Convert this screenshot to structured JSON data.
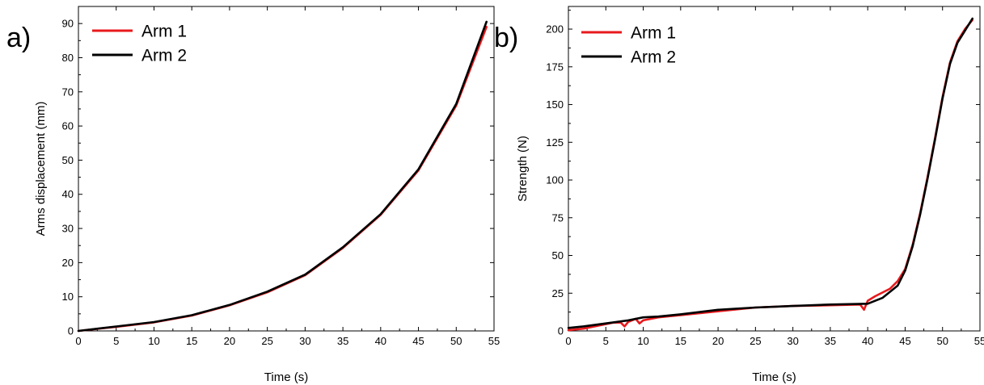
{
  "colors": {
    "arm1": "#e8191c",
    "arm2": "#000000",
    "axis": "#000000"
  },
  "chart_data": [
    {
      "type": "line",
      "panel_label": "a)",
      "xlabel": "Time (s)",
      "ylabel": "Arms displacement (mm)",
      "xlim": [
        0,
        55
      ],
      "ylim": [
        0,
        95
      ],
      "xticks": [
        0,
        5,
        10,
        15,
        20,
        25,
        30,
        35,
        40,
        45,
        50,
        55
      ],
      "yticks": [
        0,
        10,
        20,
        30,
        40,
        50,
        60,
        70,
        80,
        90
      ],
      "grid": false,
      "legend_position": "top-left",
      "series": [
        {
          "name": "Arm 1",
          "color": "#e8191c",
          "x": [
            0,
            5,
            10,
            15,
            20,
            25,
            30,
            35,
            40,
            45,
            50,
            54
          ],
          "y": [
            0,
            1.2,
            2.5,
            4.5,
            7.5,
            11.3,
            16.3,
            24.3,
            34,
            47,
            66,
            89
          ]
        },
        {
          "name": "Arm 2",
          "color": "#000000",
          "x": [
            0,
            5,
            10,
            15,
            20,
            25,
            30,
            35,
            40,
            45,
            50,
            54
          ],
          "y": [
            0,
            1.3,
            2.6,
            4.6,
            7.6,
            11.5,
            16.5,
            24.5,
            34.2,
            47.3,
            66.5,
            90.5
          ]
        }
      ]
    },
    {
      "type": "line",
      "panel_label": "b)",
      "xlabel": "Time (s)",
      "ylabel": "Strength (N)",
      "xlim": [
        0,
        55
      ],
      "ylim": [
        0,
        215
      ],
      "xticks": [
        0,
        5,
        10,
        15,
        20,
        25,
        30,
        35,
        40,
        45,
        50,
        55
      ],
      "yticks": [
        0,
        25,
        50,
        75,
        100,
        125,
        150,
        175,
        200
      ],
      "grid": false,
      "legend_position": "top-left",
      "series": [
        {
          "name": "Arm 1",
          "color": "#e8191c",
          "x": [
            0,
            2,
            4,
            6,
            7,
            7.5,
            8,
            9,
            9.5,
            10,
            12,
            15,
            20,
            25,
            30,
            35,
            39,
            39.5,
            40,
            41,
            43,
            44,
            45,
            46,
            47,
            48,
            49,
            50,
            51,
            52,
            53,
            53.5,
            54
          ],
          "y": [
            0.5,
            1.5,
            3.5,
            5.5,
            5.5,
            3,
            6,
            8,
            5,
            7,
            9,
            10.5,
            13,
            15.5,
            16.5,
            17,
            17.5,
            14,
            20,
            23,
            28,
            33,
            41,
            57,
            78,
            102,
            128,
            155,
            178,
            192,
            200,
            203,
            206
          ]
        },
        {
          "name": "Arm 2",
          "color": "#000000",
          "x": [
            0,
            2,
            5,
            8,
            10,
            12,
            15,
            20,
            25,
            30,
            35,
            40,
            42,
            44,
            45,
            46,
            47,
            48,
            49,
            50,
            51,
            52,
            53,
            53.5,
            54
          ],
          "y": [
            2,
            3,
            5,
            7,
            9,
            9.5,
            11,
            14,
            15.5,
            16.5,
            17.5,
            18,
            22,
            30,
            40,
            56,
            77,
            101,
            127,
            154,
            177,
            191,
            199,
            203,
            207
          ]
        }
      ]
    }
  ]
}
